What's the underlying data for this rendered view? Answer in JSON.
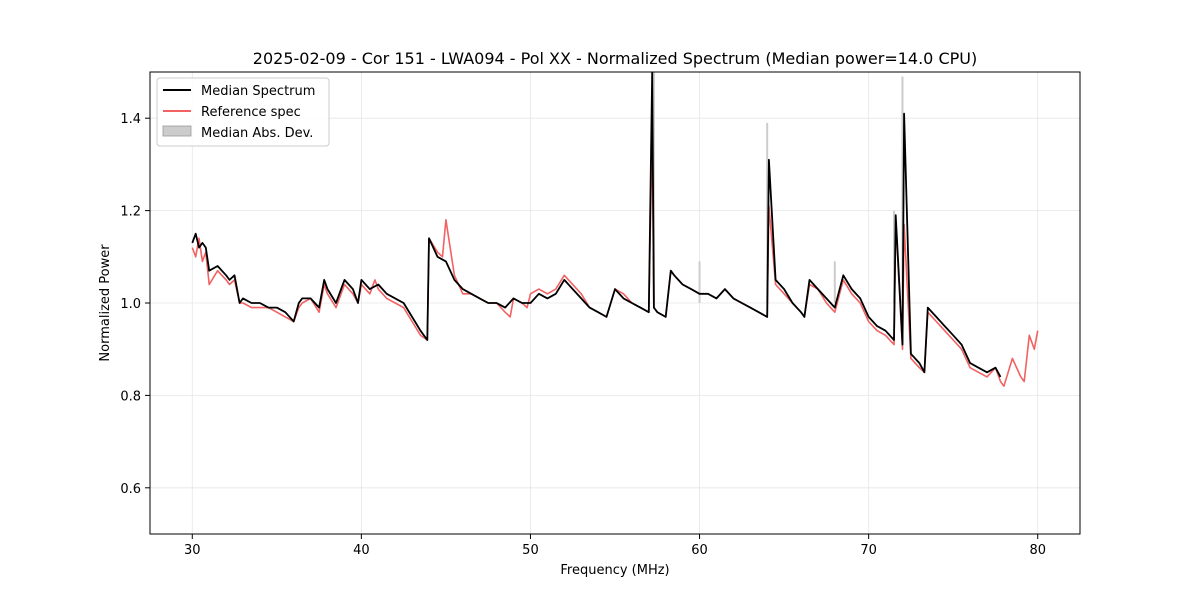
{
  "chart_data": {
    "type": "line",
    "title": "2025-02-09 - Cor 151 - LWA094 - Pol XX - Normalized Spectrum (Median power=14.0 CPU)",
    "xlabel": "Frequency (MHz)",
    "ylabel": "Normalized Power",
    "xlim": [
      27.5,
      82.5
    ],
    "ylim": [
      0.5,
      1.5
    ],
    "xticks": [
      30,
      40,
      50,
      60,
      70,
      80
    ],
    "yticks": [
      0.6,
      0.8,
      1.0,
      1.2,
      1.4
    ],
    "xtick_labels": [
      "30",
      "40",
      "50",
      "60",
      "70",
      "80"
    ],
    "ytick_labels": [
      "0.6",
      "0.8",
      "1.0",
      "1.2",
      "1.4"
    ],
    "grid": true,
    "legend_position": "top-left",
    "legend": [
      {
        "label": "Median Spectrum",
        "color": "#000000",
        "kind": "line"
      },
      {
        "label": "Reference spec",
        "color": "#f26262",
        "kind": "line"
      },
      {
        "label": "Median Abs. Dev.",
        "color": "#cccccc",
        "kind": "patch"
      }
    ],
    "series": [
      {
        "name": "Reference spec",
        "color": "#f26262",
        "x": [
          30.0,
          30.2,
          30.4,
          30.6,
          30.8,
          31.0,
          31.5,
          32.0,
          32.2,
          32.5,
          32.8,
          33.0,
          33.5,
          34.0,
          34.5,
          35.0,
          35.5,
          36.0,
          36.3,
          36.5,
          37.0,
          37.5,
          37.8,
          38.0,
          38.5,
          38.8,
          39.0,
          39.5,
          39.8,
          40.0,
          40.5,
          40.8,
          41.0,
          41.5,
          42.0,
          42.5,
          43.0,
          43.5,
          43.9,
          44.0,
          44.5,
          44.8,
          45.0,
          45.5,
          46.0,
          46.5,
          47.0,
          47.5,
          48.0,
          48.5,
          48.8,
          49.0,
          49.5,
          49.8,
          50.0,
          50.5,
          51.0,
          51.5,
          52.0,
          52.5,
          53.0,
          53.5,
          54.0,
          54.5,
          55.0,
          55.5,
          56.0,
          56.5,
          57.0,
          57.2,
          57.3,
          57.5,
          58.0,
          58.3,
          58.5,
          59.0,
          59.5,
          60.0,
          60.5,
          61.0,
          61.5,
          62.0,
          62.5,
          63.0,
          63.5,
          64.0,
          64.1,
          64.5,
          65.0,
          65.5,
          66.0,
          66.2,
          66.5,
          67.0,
          67.5,
          68.0,
          68.5,
          69.0,
          69.5,
          70.0,
          70.5,
          71.0,
          71.5,
          71.6,
          72.0,
          72.1,
          72.5,
          73.0,
          73.3,
          73.5,
          74.0,
          74.5,
          75.0,
          75.5,
          76.0,
          76.5,
          77.0,
          77.5,
          77.8,
          78.0,
          78.5,
          79.0,
          79.2,
          79.5,
          79.8,
          80.0
        ],
        "y": [
          1.12,
          1.1,
          1.14,
          1.09,
          1.11,
          1.04,
          1.07,
          1.05,
          1.04,
          1.05,
          1.0,
          1.0,
          0.99,
          0.99,
          0.99,
          0.98,
          0.97,
          0.96,
          0.99,
          1.0,
          1.01,
          0.98,
          1.04,
          1.02,
          0.99,
          1.02,
          1.04,
          1.02,
          1.0,
          1.04,
          1.02,
          1.05,
          1.03,
          1.01,
          1.0,
          0.99,
          0.96,
          0.93,
          0.92,
          1.14,
          1.11,
          1.1,
          1.18,
          1.06,
          1.02,
          1.02,
          1.01,
          1.0,
          1.0,
          0.98,
          0.97,
          1.01,
          1.0,
          0.99,
          1.02,
          1.03,
          1.02,
          1.03,
          1.06,
          1.04,
          1.02,
          0.99,
          0.98,
          0.97,
          1.03,
          1.02,
          1.0,
          0.99,
          0.98,
          1.38,
          0.99,
          0.98,
          0.97,
          1.07,
          1.06,
          1.04,
          1.03,
          1.02,
          1.02,
          1.01,
          1.03,
          1.01,
          1.0,
          0.99,
          0.98,
          0.97,
          1.21,
          1.04,
          1.02,
          1.0,
          0.98,
          0.97,
          1.04,
          1.03,
          1.0,
          0.98,
          1.05,
          1.02,
          1.0,
          0.96,
          0.94,
          0.93,
          0.91,
          1.18,
          0.9,
          1.17,
          0.88,
          0.86,
          0.85,
          0.98,
          0.96,
          0.94,
          0.92,
          0.9,
          0.86,
          0.85,
          0.84,
          0.86,
          0.83,
          0.82,
          0.88,
          0.84,
          0.83,
          0.93,
          0.9,
          0.94
        ]
      },
      {
        "name": "Median Spectrum",
        "color": "#000000",
        "x": [
          30.0,
          30.2,
          30.4,
          30.6,
          30.8,
          31.0,
          31.5,
          32.0,
          32.2,
          32.5,
          32.8,
          33.0,
          33.5,
          34.0,
          34.5,
          35.0,
          35.5,
          36.0,
          36.3,
          36.5,
          37.0,
          37.5,
          37.8,
          38.0,
          38.5,
          38.8,
          39.0,
          39.5,
          39.8,
          40.0,
          40.5,
          41.0,
          41.5,
          42.0,
          42.5,
          43.0,
          43.5,
          43.9,
          44.0,
          44.5,
          45.0,
          45.5,
          46.0,
          46.5,
          47.0,
          47.5,
          48.0,
          48.5,
          49.0,
          49.5,
          50.0,
          50.5,
          51.0,
          51.5,
          52.0,
          52.5,
          53.0,
          53.5,
          54.0,
          54.5,
          55.0,
          55.5,
          56.0,
          56.5,
          57.0,
          57.2,
          57.3,
          57.5,
          58.0,
          58.3,
          58.5,
          59.0,
          59.5,
          60.0,
          60.5,
          61.0,
          61.5,
          62.0,
          62.5,
          63.0,
          63.5,
          64.0,
          64.1,
          64.5,
          65.0,
          65.5,
          66.0,
          66.2,
          66.5,
          67.0,
          67.5,
          68.0,
          68.5,
          69.0,
          69.5,
          70.0,
          70.5,
          71.0,
          71.5,
          71.6,
          72.0,
          72.1,
          72.5,
          73.0,
          73.3,
          73.5,
          74.0,
          74.5,
          75.0,
          75.5,
          76.0,
          76.5,
          77.0,
          77.5,
          77.8
        ],
        "y": [
          1.13,
          1.15,
          1.12,
          1.13,
          1.12,
          1.07,
          1.08,
          1.06,
          1.05,
          1.06,
          1.0,
          1.01,
          1.0,
          1.0,
          0.99,
          0.99,
          0.98,
          0.96,
          1.0,
          1.01,
          1.01,
          0.99,
          1.05,
          1.03,
          1.0,
          1.03,
          1.05,
          1.03,
          1.0,
          1.05,
          1.03,
          1.04,
          1.02,
          1.01,
          1.0,
          0.97,
          0.94,
          0.92,
          1.14,
          1.1,
          1.09,
          1.05,
          1.03,
          1.02,
          1.01,
          1.0,
          1.0,
          0.99,
          1.01,
          1.0,
          1.0,
          1.02,
          1.01,
          1.02,
          1.05,
          1.03,
          1.01,
          0.99,
          0.98,
          0.97,
          1.03,
          1.01,
          1.0,
          0.99,
          0.98,
          1.5,
          0.99,
          0.98,
          0.97,
          1.07,
          1.06,
          1.04,
          1.03,
          1.02,
          1.02,
          1.01,
          1.03,
          1.01,
          1.0,
          0.99,
          0.98,
          0.97,
          1.31,
          1.05,
          1.03,
          1.0,
          0.98,
          0.97,
          1.05,
          1.03,
          1.01,
          0.99,
          1.06,
          1.03,
          1.01,
          0.97,
          0.95,
          0.94,
          0.92,
          1.19,
          0.91,
          1.41,
          0.89,
          0.87,
          0.85,
          0.99,
          0.97,
          0.95,
          0.93,
          0.91,
          0.87,
          0.86,
          0.85,
          0.86,
          0.84
        ]
      }
    ],
    "mad_spikes": [
      {
        "x": 57.3,
        "y": 1.5
      },
      {
        "x": 60.0,
        "y": 1.09
      },
      {
        "x": 64.0,
        "y": 1.39
      },
      {
        "x": 68.0,
        "y": 1.09
      },
      {
        "x": 71.5,
        "y": 1.2
      },
      {
        "x": 72.0,
        "y": 1.49
      }
    ]
  }
}
